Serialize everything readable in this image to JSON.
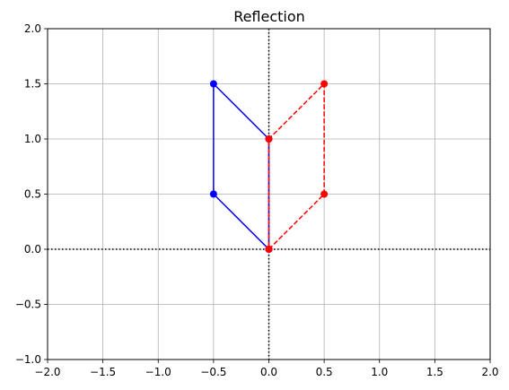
{
  "chart_data": {
    "type": "line",
    "title": "Reflection",
    "xlabel": "",
    "ylabel": "",
    "xlim": [
      -2.0,
      2.0
    ],
    "ylim": [
      -1.0,
      2.0
    ],
    "xticks": [
      -2.0,
      -1.5,
      -1.0,
      -0.5,
      0.0,
      0.5,
      1.0,
      1.5,
      2.0
    ],
    "yticks": [
      -1.0,
      -0.5,
      0.0,
      0.5,
      1.0,
      1.5,
      2.0
    ],
    "xtick_labels": [
      "−2.0",
      "−1.5",
      "−1.0",
      "−0.5",
      "0.0",
      "0.5",
      "1.0",
      "1.5",
      "2.0"
    ],
    "ytick_labels": [
      "−1.0",
      "−0.5",
      "0.0",
      "0.5",
      "1.0",
      "1.5",
      "2.0"
    ],
    "grid": true,
    "reference_lines": [
      {
        "orientation": "horizontal",
        "value": 0.0,
        "style": "dotted",
        "color": "#000000"
      },
      {
        "orientation": "vertical",
        "value": 0.0,
        "style": "dotted",
        "color": "#000000"
      }
    ],
    "series": [
      {
        "key": "original",
        "color": "#0000ff",
        "line_style": "solid",
        "marker": "circle",
        "x": [
          0.0,
          -0.5,
          -0.5,
          0.0,
          0.0
        ],
        "y": [
          0.0,
          0.5,
          1.5,
          1.0,
          0.0
        ]
      },
      {
        "key": "reflected",
        "color": "#ff0000",
        "line_style": "dashed",
        "marker": "circle",
        "x": [
          0.0,
          0.5,
          0.5,
          0.0,
          0.0
        ],
        "y": [
          0.0,
          0.5,
          1.5,
          1.0,
          0.0
        ]
      }
    ]
  }
}
